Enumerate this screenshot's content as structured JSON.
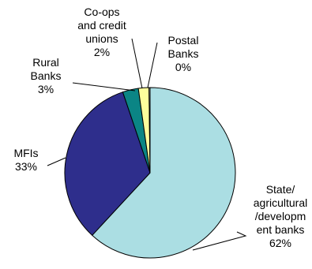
{
  "chart_data": {
    "type": "pie",
    "title": "",
    "start_angle_deg": 0,
    "direction": "clockwise",
    "slices": [
      {
        "key": "state",
        "label": [
          "State/",
          "agricultural",
          "/developm",
          "ent banks"
        ],
        "percent_label": "62%",
        "value": 62,
        "color": "#ABDEE3"
      },
      {
        "key": "mfis",
        "label": [
          "MFIs"
        ],
        "percent_label": "33%",
        "value": 33,
        "color": "#2E2E8C"
      },
      {
        "key": "rural",
        "label": [
          "Rural",
          "Banks"
        ],
        "percent_label": "3%",
        "value": 3,
        "color": "#0B8585"
      },
      {
        "key": "coops",
        "label": [
          "Co-ops",
          "and credit",
          "unions"
        ],
        "percent_label": "2%",
        "value": 2,
        "color": "#FDFD9C"
      },
      {
        "key": "postal",
        "label": [
          "Postal",
          "Banks"
        ],
        "percent_label": "0%",
        "value": 0.2,
        "color": "#FFFFFF"
      }
    ]
  }
}
